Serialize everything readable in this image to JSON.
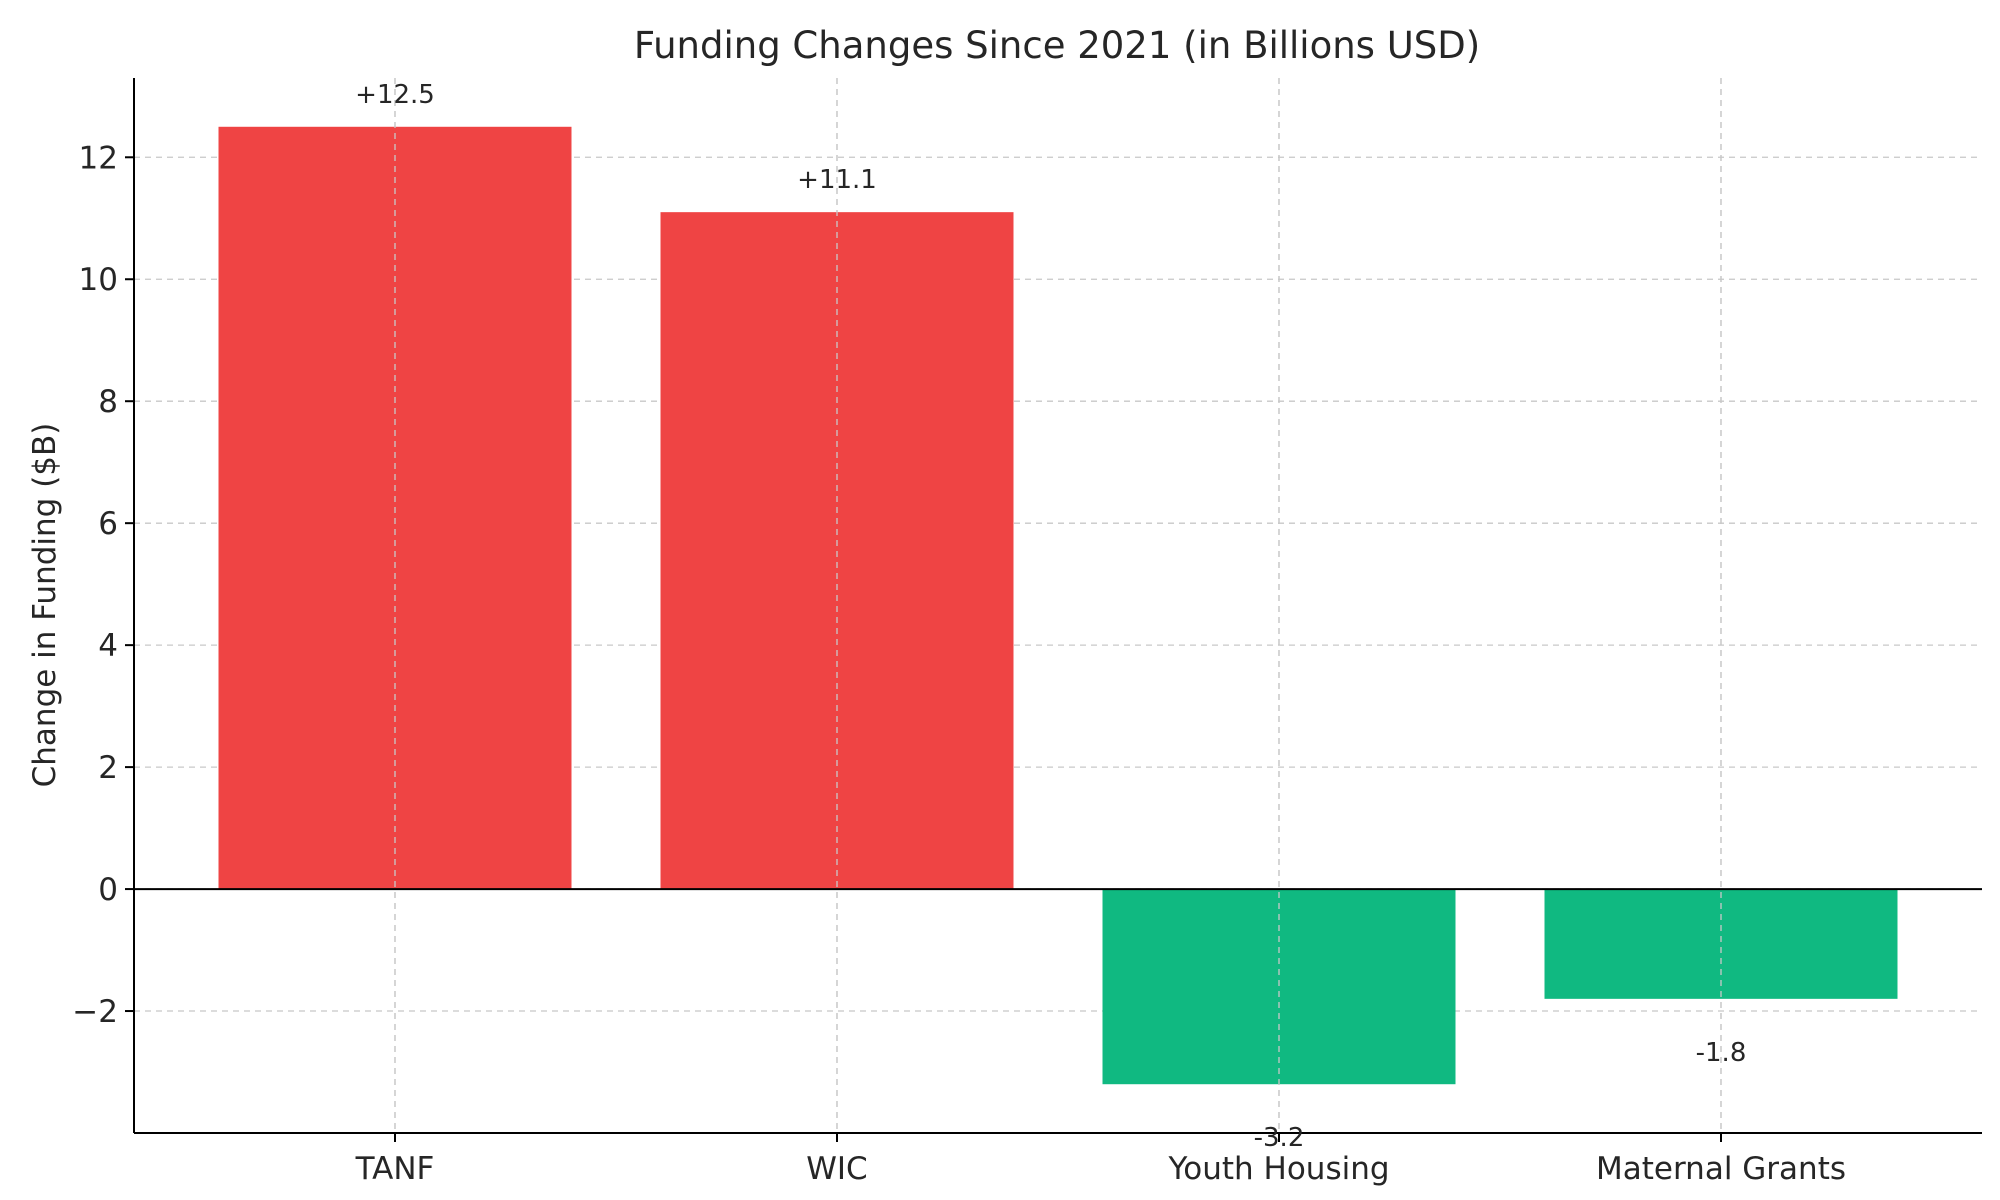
{
  "chart_data": {
    "type": "bar",
    "title": "Funding Changes Since 2021 (in Billions USD)",
    "xlabel": "",
    "ylabel": "Change in Funding ($B)",
    "ylim": [
      -4.0,
      13.3
    ],
    "yticks": [
      -2,
      0,
      2,
      4,
      6,
      8,
      10,
      12
    ],
    "ytick_labels": [
      "−2",
      "0",
      "2",
      "4",
      "6",
      "8",
      "10",
      "12"
    ],
    "grid": true,
    "categories": [
      "TANF",
      "WIC",
      "Youth Housing",
      "Maternal Grants"
    ],
    "values": [
      12.5,
      11.1,
      -3.2,
      -1.8
    ],
    "data_labels": [
      "+12.5",
      "+11.1",
      "-3.2",
      "-1.8"
    ],
    "colors": {
      "positive": "#ef4444",
      "negative": "#10b981"
    }
  }
}
